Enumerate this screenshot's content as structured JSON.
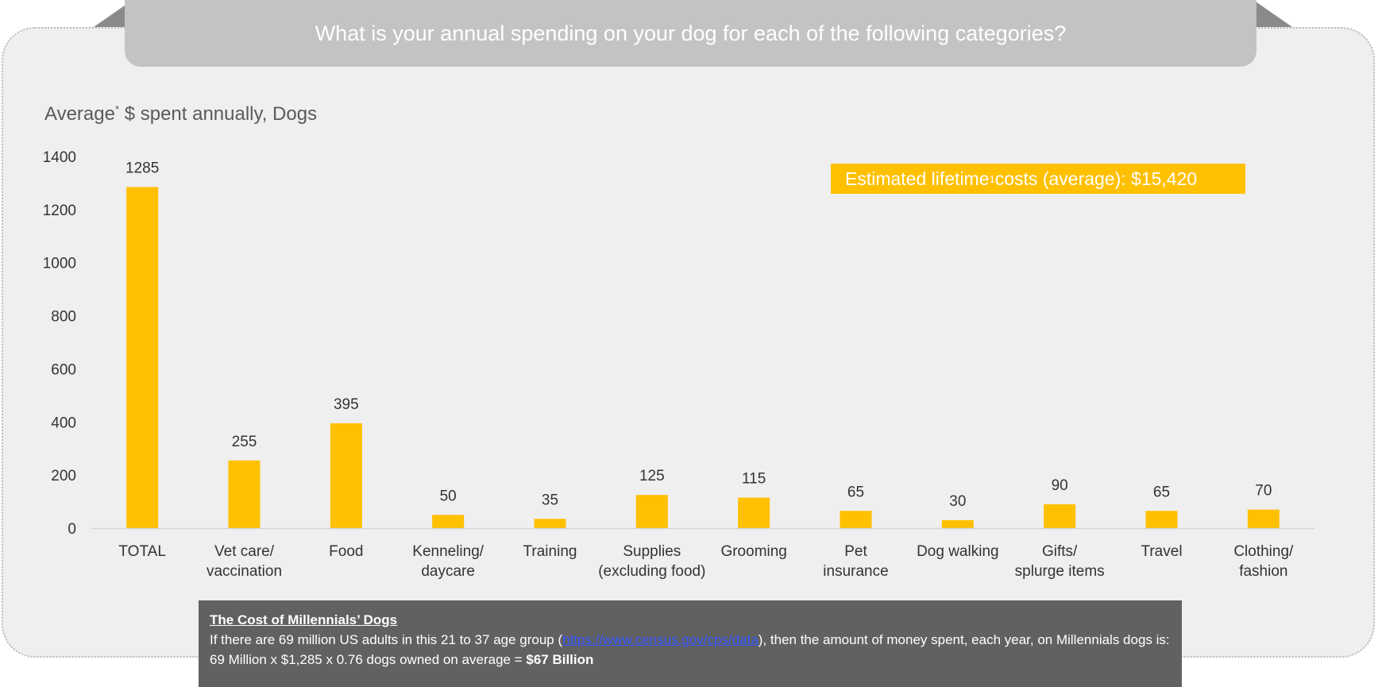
{
  "header": {
    "question": "What is your annual spending on your dog for each of the following categories?"
  },
  "subtitle": {
    "text_before": "Average",
    "superscript": "*",
    "text_after": " $ spent annually, Dogs"
  },
  "callout": {
    "text_before": "Estimated lifetime",
    "superscript": "1",
    "text_after": " costs (average): $15,420",
    "color": "#ffc000"
  },
  "chart_data": {
    "type": "bar",
    "categories": [
      [
        "TOTAL"
      ],
      [
        "Vet care/",
        "vaccination"
      ],
      [
        "Food"
      ],
      [
        "Kenneling/",
        "daycare"
      ],
      [
        "Training"
      ],
      [
        "Supplies",
        "(excluding food)"
      ],
      [
        "Grooming"
      ],
      [
        "Pet",
        "insurance"
      ],
      [
        "Dog walking"
      ],
      [
        "Gifts/",
        "splurge items"
      ],
      [
        "Travel"
      ],
      [
        "Clothing/",
        "fashion"
      ]
    ],
    "values": [
      1285,
      255,
      395,
      50,
      35,
      125,
      115,
      65,
      30,
      90,
      65,
      70
    ],
    "ylim": [
      0,
      1400
    ],
    "yticks": [
      0,
      200,
      400,
      600,
      800,
      1000,
      1200,
      1400
    ],
    "bar_color": "#ffc000",
    "grid": false,
    "data_labels": true
  },
  "note": {
    "title": "The Cost of Millennials’ Dogs",
    "text_1": "If there are 69 million US adults in this 21 to 37 age group (",
    "link": "https://www.census.gov/cps/data",
    "text_2": "), then the amount of money spent, each year, on Millennials dogs is: 69 Million x $1,285 x 0.76 dogs owned on average = ",
    "emphasis": "$67 Billion"
  }
}
